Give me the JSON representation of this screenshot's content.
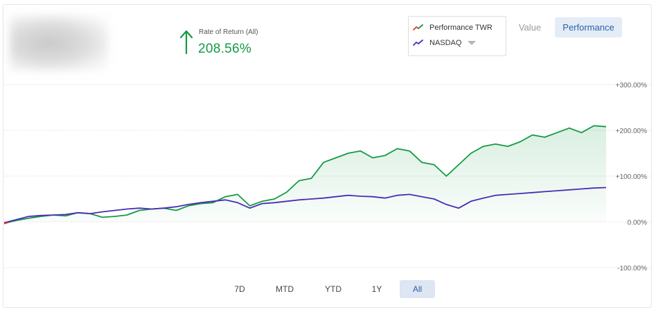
{
  "header": {
    "logo_redacted": true,
    "rate_of_return_label": "Rate of Return (All)",
    "rate_of_return_value": "208.56%",
    "direction": "up",
    "accent_color": "#139a43"
  },
  "legend": {
    "items": [
      {
        "label": "Performance TWR",
        "icon": "line-swatch-icon",
        "colors": [
          "#e0363b",
          "#139a43"
        ]
      },
      {
        "label": "NASDAQ",
        "icon": "line-swatch-icon",
        "colors": [
          "#3b1fa8",
          "#5b3fc4"
        ],
        "has_dropdown": true
      }
    ]
  },
  "view_toggle": {
    "options": [
      "Value",
      "Performance"
    ],
    "selected": "Performance"
  },
  "range_selector": {
    "options": [
      "7D",
      "MTD",
      "YTD",
      "1Y",
      "All"
    ],
    "selected": "All"
  },
  "chart_data": {
    "type": "line",
    "ylim": [
      -100,
      300
    ],
    "y_ticks": [
      "+300.00%",
      "+200.00%",
      "+100.00%",
      "0.00%",
      "-100.00%"
    ],
    "y_tick_values": [
      300,
      200,
      100,
      0,
      -100
    ],
    "grid": true,
    "series": [
      {
        "name": "Performance TWR",
        "color": "#139a43",
        "area": true,
        "values": [
          -3,
          3,
          8,
          12,
          15,
          13,
          20,
          18,
          10,
          12,
          15,
          25,
          28,
          30,
          25,
          35,
          40,
          42,
          55,
          60,
          35,
          45,
          50,
          65,
          90,
          95,
          130,
          140,
          150,
          155,
          140,
          145,
          160,
          155,
          130,
          125,
          100,
          125,
          150,
          165,
          170,
          165,
          175,
          190,
          185,
          195,
          205,
          195,
          210,
          208
        ]
      },
      {
        "name": "NASDAQ",
        "color": "#4a2bb8",
        "area": false,
        "values": [
          -2,
          5,
          12,
          14,
          15,
          16,
          20,
          18,
          22,
          25,
          28,
          30,
          28,
          30,
          33,
          38,
          42,
          45,
          48,
          42,
          30,
          40,
          42,
          45,
          48,
          50,
          52,
          55,
          58,
          56,
          55,
          52,
          58,
          60,
          55,
          50,
          38,
          30,
          45,
          52,
          58,
          60,
          62,
          64,
          66,
          68,
          70,
          72,
          74,
          75
        ]
      }
    ]
  }
}
